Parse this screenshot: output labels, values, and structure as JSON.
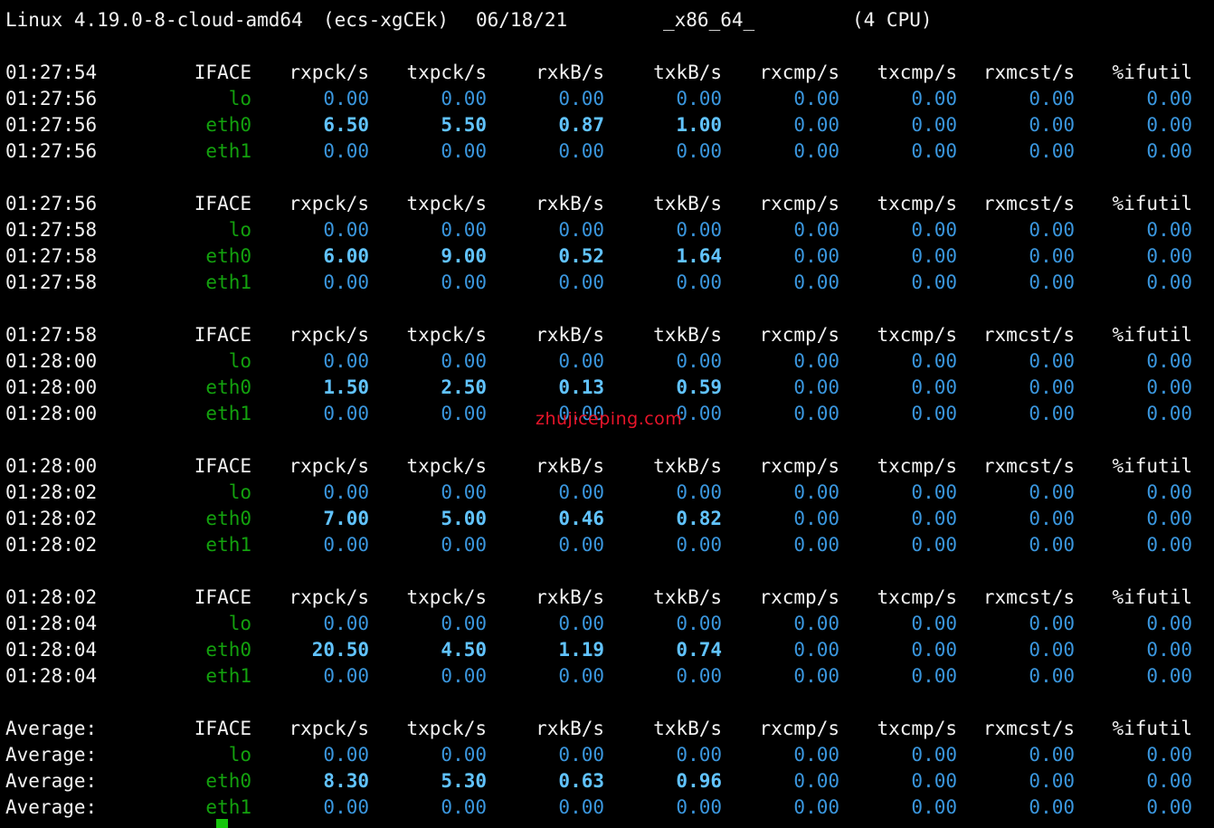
{
  "system_line": {
    "kernel": "Linux 4.19.0-8-cloud-amd64",
    "host": "(ecs-xgCEk)",
    "date": "06/18/21",
    "arch": "_x86_64_",
    "cpus": "(4 CPU)"
  },
  "columns": [
    "IFACE",
    "rxpck/s",
    "txpck/s",
    "rxkB/s",
    "txkB/s",
    "rxcmp/s",
    "txcmp/s",
    "rxmcst/s",
    "%ifutil"
  ],
  "blocks": [
    {
      "header_time": "01:27:54",
      "rows": [
        {
          "time": "01:27:56",
          "iface": "lo",
          "values": [
            "0.00",
            "0.00",
            "0.00",
            "0.00",
            "0.00",
            "0.00",
            "0.00",
            "0.00"
          ],
          "bold": false
        },
        {
          "time": "01:27:56",
          "iface": "eth0",
          "values": [
            "6.50",
            "5.50",
            "0.87",
            "1.00",
            "0.00",
            "0.00",
            "0.00",
            "0.00"
          ],
          "bold": true
        },
        {
          "time": "01:27:56",
          "iface": "eth1",
          "values": [
            "0.00",
            "0.00",
            "0.00",
            "0.00",
            "0.00",
            "0.00",
            "0.00",
            "0.00"
          ],
          "bold": false
        }
      ]
    },
    {
      "header_time": "01:27:56",
      "rows": [
        {
          "time": "01:27:58",
          "iface": "lo",
          "values": [
            "0.00",
            "0.00",
            "0.00",
            "0.00",
            "0.00",
            "0.00",
            "0.00",
            "0.00"
          ],
          "bold": false
        },
        {
          "time": "01:27:58",
          "iface": "eth0",
          "values": [
            "6.00",
            "9.00",
            "0.52",
            "1.64",
            "0.00",
            "0.00",
            "0.00",
            "0.00"
          ],
          "bold": true
        },
        {
          "time": "01:27:58",
          "iface": "eth1",
          "values": [
            "0.00",
            "0.00",
            "0.00",
            "0.00",
            "0.00",
            "0.00",
            "0.00",
            "0.00"
          ],
          "bold": false
        }
      ]
    },
    {
      "header_time": "01:27:58",
      "rows": [
        {
          "time": "01:28:00",
          "iface": "lo",
          "values": [
            "0.00",
            "0.00",
            "0.00",
            "0.00",
            "0.00",
            "0.00",
            "0.00",
            "0.00"
          ],
          "bold": false
        },
        {
          "time": "01:28:00",
          "iface": "eth0",
          "values": [
            "1.50",
            "2.50",
            "0.13",
            "0.59",
            "0.00",
            "0.00",
            "0.00",
            "0.00"
          ],
          "bold": true
        },
        {
          "time": "01:28:00",
          "iface": "eth1",
          "values": [
            "0.00",
            "0.00",
            "0.00",
            "0.00",
            "0.00",
            "0.00",
            "0.00",
            "0.00"
          ],
          "bold": false
        }
      ]
    },
    {
      "header_time": "01:28:00",
      "rows": [
        {
          "time": "01:28:02",
          "iface": "lo",
          "values": [
            "0.00",
            "0.00",
            "0.00",
            "0.00",
            "0.00",
            "0.00",
            "0.00",
            "0.00"
          ],
          "bold": false
        },
        {
          "time": "01:28:02",
          "iface": "eth0",
          "values": [
            "7.00",
            "5.00",
            "0.46",
            "0.82",
            "0.00",
            "0.00",
            "0.00",
            "0.00"
          ],
          "bold": true
        },
        {
          "time": "01:28:02",
          "iface": "eth1",
          "values": [
            "0.00",
            "0.00",
            "0.00",
            "0.00",
            "0.00",
            "0.00",
            "0.00",
            "0.00"
          ],
          "bold": false
        }
      ]
    },
    {
      "header_time": "01:28:02",
      "rows": [
        {
          "time": "01:28:04",
          "iface": "lo",
          "values": [
            "0.00",
            "0.00",
            "0.00",
            "0.00",
            "0.00",
            "0.00",
            "0.00",
            "0.00"
          ],
          "bold": false
        },
        {
          "time": "01:28:04",
          "iface": "eth0",
          "values": [
            "20.50",
            "4.50",
            "1.19",
            "0.74",
            "0.00",
            "0.00",
            "0.00",
            "0.00"
          ],
          "bold": true
        },
        {
          "time": "01:28:04",
          "iface": "eth1",
          "values": [
            "0.00",
            "0.00",
            "0.00",
            "0.00",
            "0.00",
            "0.00",
            "0.00",
            "0.00"
          ],
          "bold": false
        }
      ]
    },
    {
      "header_time": "Average:",
      "rows": [
        {
          "time": "Average:",
          "iface": "lo",
          "values": [
            "0.00",
            "0.00",
            "0.00",
            "0.00",
            "0.00",
            "0.00",
            "0.00",
            "0.00"
          ],
          "bold": false
        },
        {
          "time": "Average:",
          "iface": "eth0",
          "values": [
            "8.30",
            "5.30",
            "0.63",
            "0.96",
            "0.00",
            "0.00",
            "0.00",
            "0.00"
          ],
          "bold": true
        },
        {
          "time": "Average:",
          "iface": "eth1",
          "values": [
            "0.00",
            "0.00",
            "0.00",
            "0.00",
            "0.00",
            "0.00",
            "0.00",
            "0.00"
          ],
          "bold": false
        }
      ]
    }
  ],
  "watermark": "zhujiceping.com",
  "colors": {
    "background": "#000000",
    "header_text": "#f2f2f2",
    "iface_green": "#13a10e",
    "value_blue": "#3a96dd",
    "value_bold_blue": "#61c3ff",
    "watermark_red": "#e8152a",
    "cursor_green": "#16c60c"
  }
}
